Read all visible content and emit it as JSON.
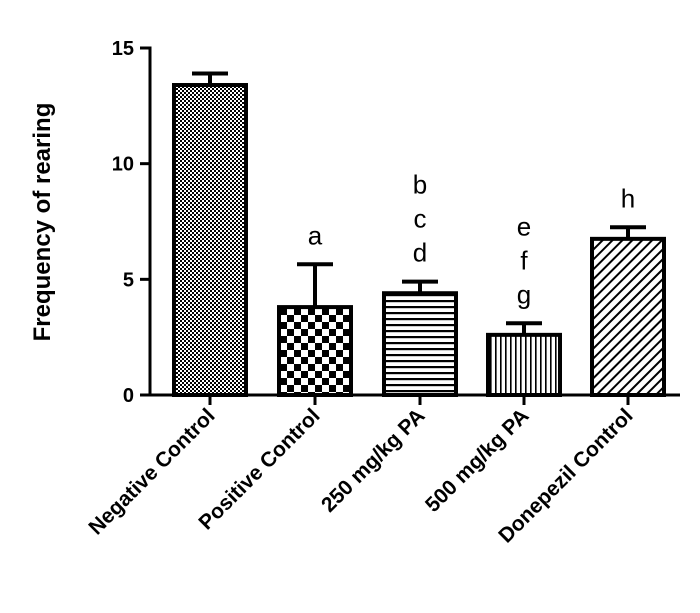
{
  "chart_data": {
    "type": "bar",
    "title": "",
    "xlabel": "",
    "ylabel": "Frequency of rearing",
    "ylim": [
      0,
      15
    ],
    "yticks": [
      0,
      5,
      10,
      15
    ],
    "categories": [
      "Negative Control",
      "Positive Control",
      "250 mg/kg PA",
      "500 mg/kg PA",
      "Donepezil Control"
    ],
    "values": [
      13.4,
      3.8,
      4.4,
      2.6,
      6.75
    ],
    "errors": [
      0.5,
      1.85,
      0.5,
      0.5,
      0.5
    ],
    "patterns": [
      "dots",
      "checker",
      "horizontal-lines",
      "vertical-lines",
      "diagonal-lines"
    ],
    "annotations": [
      [],
      [
        "a"
      ],
      [
        "b",
        "c",
        "d"
      ],
      [
        "e",
        "f",
        "g"
      ],
      [
        "h"
      ]
    ],
    "grid": false,
    "legend": "none",
    "colors": {
      "bar_fill": "#000000",
      "background": "#ffffff"
    }
  }
}
